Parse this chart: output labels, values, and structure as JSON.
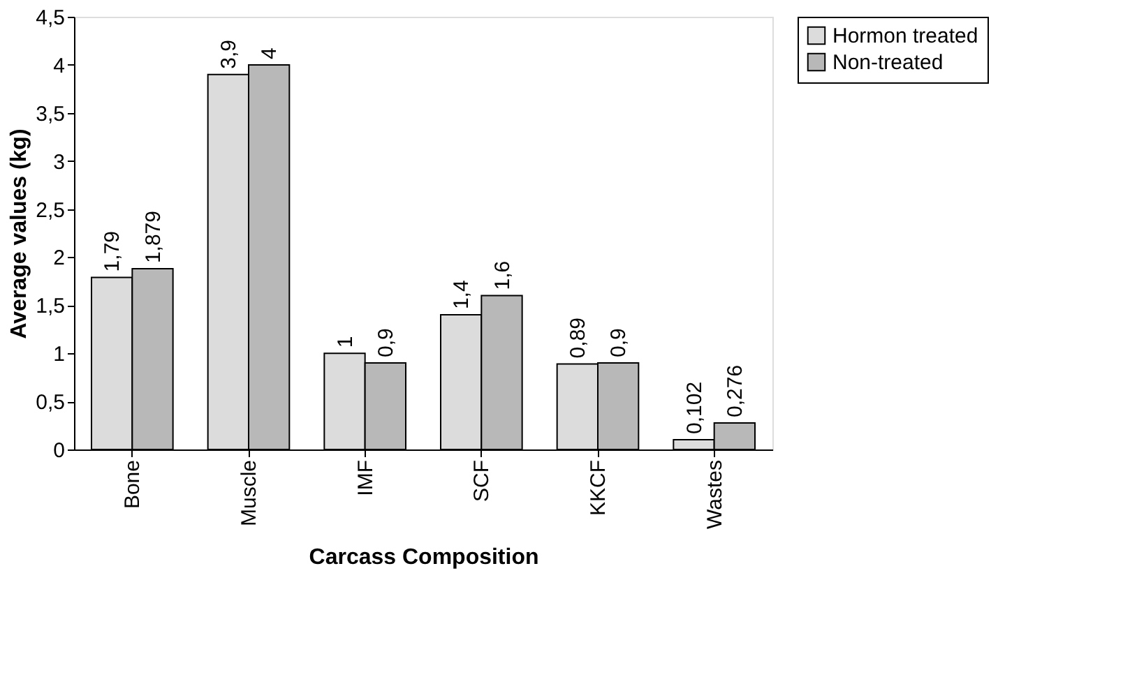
{
  "chart_data": {
    "type": "bar",
    "xlabel": "Carcass Composition",
    "ylabel": "Average values (kg)",
    "categories": [
      "Bone",
      "Muscle",
      "IMF",
      "SCF",
      "KKCF",
      "Wastes"
    ],
    "series": [
      {
        "name": "Hormon treated",
        "color": "#dcdcdc",
        "values": [
          1.79,
          3.9,
          1,
          1.4,
          0.89,
          0.102
        ],
        "value_labels": [
          "1,79",
          "3,9",
          "1",
          "1,4",
          "0,89",
          "0,102"
        ]
      },
      {
        "name": "Non-treated",
        "color": "#b8b8b8",
        "values": [
          1.879,
          4,
          0.9,
          1.6,
          0.9,
          0.276
        ],
        "value_labels": [
          "1,879",
          "4",
          "0,9",
          "1,6",
          "0,9",
          "0,276"
        ]
      }
    ],
    "ylim": [
      0,
      4.5
    ],
    "yticks": [
      0,
      {
        "value": 0.5,
        "label": "0,5"
      },
      1,
      {
        "value": 1.5,
        "label": "1,5"
      },
      2,
      {
        "value": 2.5,
        "label": "2,5"
      },
      3,
      {
        "value": 3.5,
        "label": "3,5"
      },
      4,
      {
        "value": 4.5,
        "label": "4,5"
      }
    ],
    "grid": false,
    "legend": "right"
  }
}
